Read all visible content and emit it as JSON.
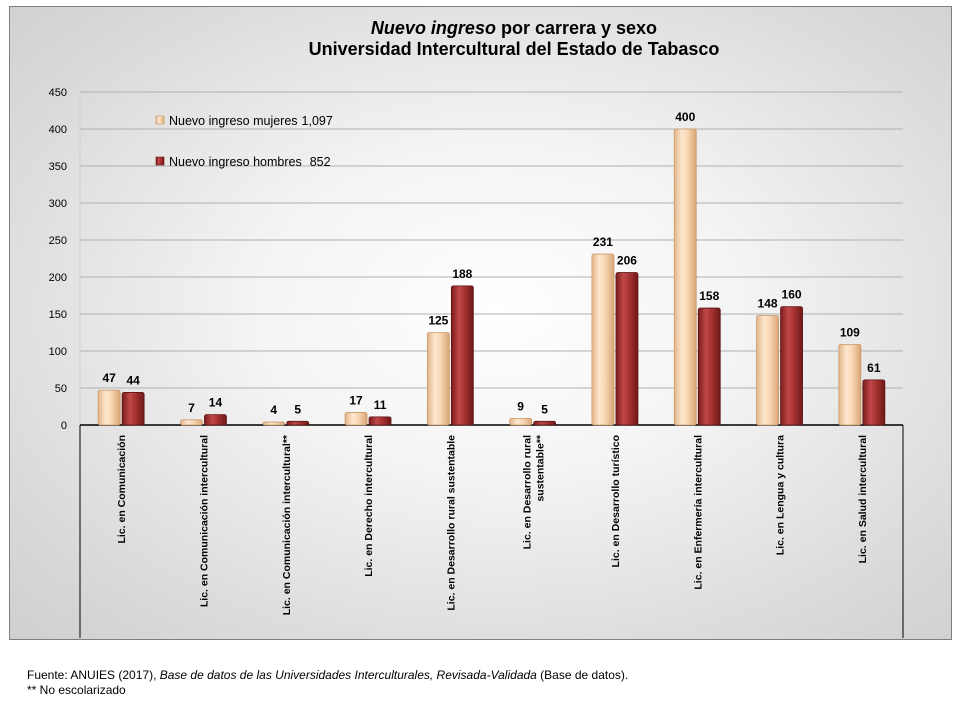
{
  "chart_data": {
    "type": "bar",
    "title": {
      "line1_italic": "Nuevo ingreso",
      "line1_rest": " por carrera y sexo",
      "line2": "Universidad Intercultural del Estado de Tabasco"
    },
    "categories": [
      "Lic. en Comunicación",
      "Lic. en Comunicación intercultural",
      "Lic. en Comunicación intercultural**",
      "Lic. en Derecho intercultural",
      "Lic. en Desarrollo rural sustentable",
      "Lic. en Desarrollo rural sustentable**",
      "Lic. en Desarrollo turístico",
      "Lic. en Enfermería intercultural",
      "Lic. en Lengua y cultura",
      "Lic. en Salud intercultural"
    ],
    "series": [
      {
        "name": "Nuevo ingreso mujeres",
        "total": "1,097",
        "color": "#f2c9a0",
        "values": [
          47,
          7,
          4,
          17,
          125,
          9,
          231,
          400,
          148,
          109
        ]
      },
      {
        "name": "Nuevo ingreso hombres",
        "total": "852",
        "color": "#a83232",
        "values": [
          44,
          14,
          5,
          11,
          188,
          5,
          206,
          158,
          160,
          61
        ]
      }
    ],
    "ylim": [
      0,
      450
    ],
    "yticks": [
      0,
      50,
      100,
      150,
      200,
      250,
      300,
      350,
      400,
      450
    ],
    "grid": true,
    "legend_position": "top-left"
  },
  "footer": {
    "source_prefix": "Fuente: ANUIES (2017), ",
    "source_italic": "Base de datos de las Universidades  Interculturales, Revisada-Validada",
    "source_suffix": "  (Base de datos).",
    "note": "** No escolarizado"
  }
}
